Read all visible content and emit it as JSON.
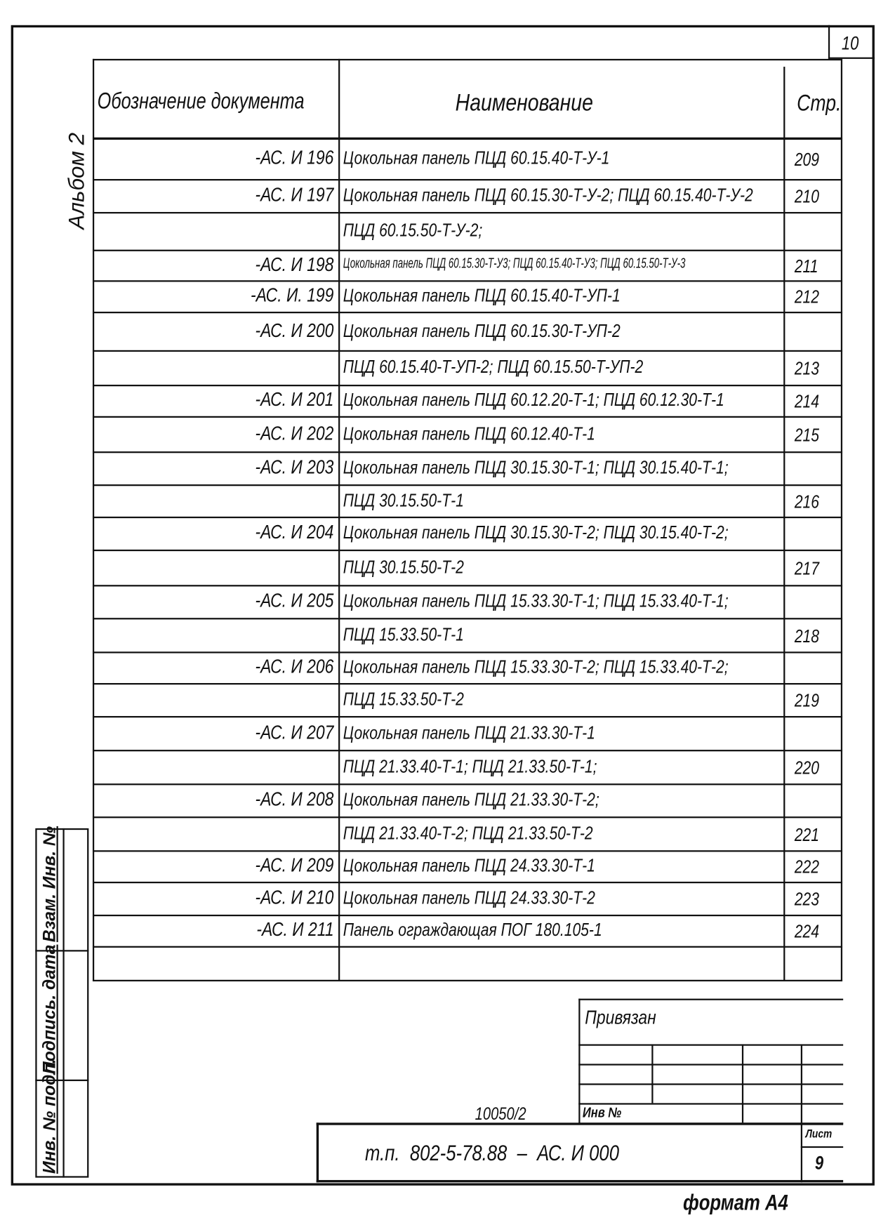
{
  "sheet_number": "10",
  "album": "Альбом 2",
  "table": {
    "headers": {
      "designation": "Обозначение документа",
      "name": "Наименование",
      "page": "Стр."
    },
    "rows": [
      {
        "code": "-АС. И 196",
        "name": "Цокольная панель ПЦД 60.15.40-Т-У-1",
        "page": "209"
      },
      {
        "code": "-АС. И 197",
        "name": "Цокольная панель ПЦД 60.15.30-Т-У-2; ПЦД 60.15.40-Т-У-2",
        "page": "210"
      },
      {
        "code": "",
        "name": "ПЦД 60.15.50-Т-У-2;",
        "page": ""
      },
      {
        "code": "-АС. И 198",
        "name": "Цокольная панель ПЦД 60.15.30-Т-У3; ПЦД 60.15.40-Т-У3; ПЦД 60.15.50-Т-У-3",
        "page": "211"
      },
      {
        "code": "-АС. И. 199",
        "name": "Цокольная панель ПЦД 60.15.40-Т-УП-1",
        "page": "212"
      },
      {
        "code": "-АС. И 200",
        "name": "Цокольная панель ПЦД 60.15.30-Т-УП-2",
        "page": ""
      },
      {
        "code": "",
        "name": "ПЦД 60.15.40-Т-УП-2; ПЦД 60.15.50-Т-УП-2",
        "page": "213"
      },
      {
        "code": "-АС. И 201",
        "name": "Цокольная панель ПЦД 60.12.20-Т-1; ПЦД 60.12.30-Т-1",
        "page": "214"
      },
      {
        "code": "-АС. И 202",
        "name": "Цокольная панель ПЦД 60.12.40-Т-1",
        "page": "215"
      },
      {
        "code": "-АС. И 203",
        "name": "Цокольная панель ПЦД 30.15.30-Т-1; ПЦД 30.15.40-Т-1;",
        "page": ""
      },
      {
        "code": "",
        "name": "ПЦД 30.15.50-Т-1",
        "page": "216"
      },
      {
        "code": "-АС. И 204",
        "name": "Цокольная панель ПЦД 30.15.30-Т-2; ПЦД 30.15.40-Т-2;",
        "page": ""
      },
      {
        "code": "",
        "name": "ПЦД 30.15.50-Т-2",
        "page": "217"
      },
      {
        "code": "-АС. И 205",
        "name": "Цокольная панель ПЦД 15.33.30-Т-1; ПЦД 15.33.40-Т-1;",
        "page": ""
      },
      {
        "code": "",
        "name": "ПЦД 15.33.50-Т-1",
        "page": "218"
      },
      {
        "code": "-АС. И 206",
        "name": "Цокольная панель ПЦД 15.33.30-Т-2; ПЦД 15.33.40-Т-2;",
        "page": ""
      },
      {
        "code": "",
        "name": "ПЦД 15.33.50-Т-2",
        "page": "219"
      },
      {
        "code": "-АС. И 207",
        "name": "Цокольная панель ПЦД 21.33.30-Т-1",
        "page": ""
      },
      {
        "code": "",
        "name": "ПЦД 21.33.40-Т-1; ПЦД 21.33.50-Т-1;",
        "page": "220"
      },
      {
        "code": "-АС. И 208",
        "name": "Цокольная панель ПЦД 21.33.30-Т-2;",
        "page": ""
      },
      {
        "code": "",
        "name": "ПЦД 21.33.40-Т-2; ПЦД 21.33.50-Т-2",
        "page": "221"
      },
      {
        "code": "-АС. И 209",
        "name": "Цокольная панель ПЦД 24.33.30-Т-1",
        "page": "222"
      },
      {
        "code": "-АС. И 210",
        "name": "Цокольная панель ПЦД 24.33.30-Т-2",
        "page": "223"
      },
      {
        "code": "-АС. И 211",
        "name": "Панель ограждающая ПОГ 180.105-1",
        "page": "224"
      },
      {
        "code": "",
        "name": "",
        "page": ""
      }
    ]
  },
  "side_stamp": {
    "replaces": "Взам. Инв. №",
    "signature": "Подпись. дата",
    "inv_orig": "Инв. № подл."
  },
  "title_block": {
    "linked": "Привязан",
    "inv_no": "Инв №",
    "archive_no": "10050/2",
    "designation": "т.п.  802-5-78.88  –  АС. И 000",
    "sheet_label": "Лист",
    "sheet": "9",
    "format": "формат А4"
  }
}
